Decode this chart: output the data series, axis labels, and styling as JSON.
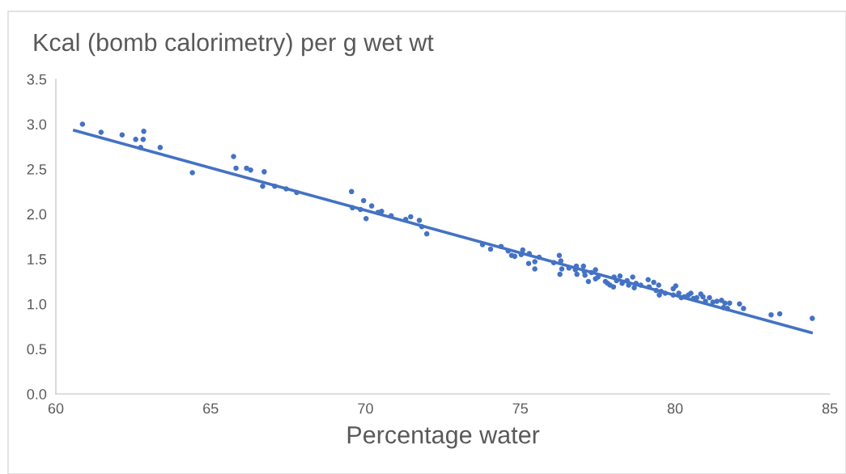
{
  "chart_data": {
    "type": "scatter",
    "title": "Kcal (bomb calorimetry) per g wet wt",
    "xlabel": "Percentage water",
    "xlim": [
      60,
      85
    ],
    "xticks": [
      60,
      65,
      70,
      75,
      80,
      85
    ],
    "ylim": [
      0,
      3.5
    ],
    "yticks": [
      {
        "value": 0,
        "label": "0.0"
      },
      {
        "value": 0.5,
        "label": "0.5"
      },
      {
        "value": 1,
        "label": "1.0"
      },
      {
        "value": 1.5,
        "label": "1.5"
      },
      {
        "value": 2,
        "label": "2.0"
      },
      {
        "value": 2.5,
        "label": "2.5"
      },
      {
        "value": 3,
        "label": "3.0"
      },
      {
        "value": 3.5,
        "label": "3.5"
      }
    ],
    "grid": false,
    "legend": false,
    "series": [
      {
        "color": "#4472c4",
        "marker": "circle",
        "x": [
          60.86,
          61.46,
          62.14,
          62.58,
          62.82,
          62.84,
          62.74,
          63.37,
          64.41,
          65.74,
          65.82,
          66.16,
          66.29,
          66.73,
          66.68,
          67.07,
          67.44,
          67.78,
          69.55,
          69.58,
          69.84,
          69.94,
          70.02,
          70.2,
          70.41,
          70.52,
          70.83,
          71.3,
          71.46,
          71.74,
          71.82,
          71.98,
          73.78,
          74.04,
          74.38,
          74.61,
          74.72,
          74.82,
          75.08,
          75.03,
          75.27,
          75.29,
          75.47,
          75.47,
          75.61,
          76.08,
          76.26,
          76.31,
          76.34,
          76.28,
          76.57,
          76.78,
          76.81,
          76.83,
          77.04,
          77.07,
          77.09,
          77.2,
          77.3,
          77.43,
          77.43,
          77.51,
          77.75,
          77.82,
          77.9,
          78.01,
          78.03,
          78.22,
          78.11,
          78.29,
          78.45,
          78.5,
          78.63,
          78.68,
          78.74,
          78.89,
          79.13,
          79.16,
          79.31,
          79.39,
          79.47,
          79.49,
          79.55,
          79.68,
          79.94,
          80.02,
          79.94,
          80.12,
          80.2,
          80.3,
          80.43,
          80.51,
          80.59,
          80.7,
          80.83,
          80.9,
          80.98,
          81.11,
          81.22,
          81.35,
          81.5,
          81.56,
          81.61,
          81.69,
          81.76,
          82.08,
          82.21,
          83.1,
          83.38,
          84.43
        ],
        "values": [
          3.0,
          2.91,
          2.88,
          2.83,
          2.83,
          2.92,
          2.74,
          2.74,
          2.46,
          2.64,
          2.51,
          2.51,
          2.49,
          2.47,
          2.31,
          2.31,
          2.28,
          2.24,
          2.25,
          2.07,
          2.05,
          2.15,
          1.95,
          2.09,
          2.02,
          2.03,
          1.98,
          1.94,
          1.97,
          1.93,
          1.86,
          1.78,
          1.66,
          1.61,
          1.64,
          1.59,
          1.54,
          1.53,
          1.6,
          1.55,
          1.45,
          1.56,
          1.47,
          1.39,
          1.52,
          1.46,
          1.54,
          1.48,
          1.39,
          1.33,
          1.4,
          1.38,
          1.42,
          1.33,
          1.42,
          1.36,
          1.32,
          1.25,
          1.35,
          1.38,
          1.28,
          1.3,
          1.25,
          1.23,
          1.21,
          1.19,
          1.3,
          1.31,
          1.26,
          1.23,
          1.26,
          1.21,
          1.3,
          1.18,
          1.23,
          1.21,
          1.27,
          1.19,
          1.24,
          1.15,
          1.21,
          1.1,
          1.14,
          1.12,
          1.17,
          1.2,
          1.1,
          1.12,
          1.07,
          1.08,
          1.1,
          1.12,
          1.06,
          1.07,
          1.11,
          1.08,
          1.03,
          1.07,
          1.02,
          1.03,
          1.04,
          0.96,
          1.01,
          0.95,
          1.01,
          1.0,
          0.95,
          0.88,
          0.89,
          0.84
        ]
      },
      {
        "type": "line",
        "marker": "none",
        "color": "#4472c4",
        "x": [
          60.6,
          84.4
        ],
        "values": [
          2.93,
          0.68
        ]
      }
    ]
  }
}
